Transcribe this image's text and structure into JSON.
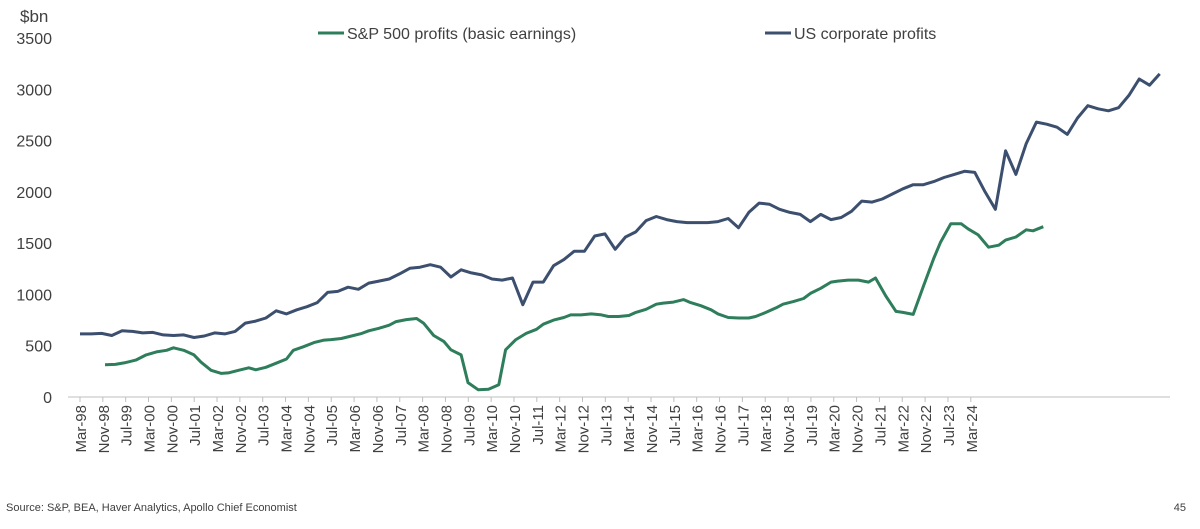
{
  "chart_data": {
    "type": "line",
    "y_unit_label": "$bn",
    "ylim": [
      0,
      3500
    ],
    "y_ticks": [
      0,
      500,
      1000,
      1500,
      2000,
      2500,
      3000,
      3500
    ],
    "x_tick_labels": [
      "Mar-98",
      "Nov-98",
      "Jul-99",
      "Mar-00",
      "Nov-00",
      "Jul-01",
      "Mar-02",
      "Nov-02",
      "Jul-03",
      "Mar-04",
      "Nov-04",
      "Jul-05",
      "Mar-06",
      "Nov-06",
      "Jul-07",
      "Mar-08",
      "Nov-08",
      "Jul-09",
      "Mar-10",
      "Nov-10",
      "Jul-11",
      "Mar-12",
      "Nov-12",
      "Jul-13",
      "Mar-14",
      "Nov-14",
      "Jul-15",
      "Mar-16",
      "Nov-16",
      "Jul-17",
      "Mar-18",
      "Nov-18",
      "Jul-19",
      "Mar-20",
      "Nov-20",
      "Jul-21",
      "Mar-22",
      "Nov-22",
      "Jul-23",
      "Mar-24"
    ],
    "x_start": 1998.17,
    "x_tick_step_years": 0.667,
    "grid": false,
    "legend_position": "top",
    "series": [
      {
        "name": "S&P 500 profits (basic earnings)",
        "color": "#2E7D5B",
        "points": [
          [
            1998.9,
            315
          ],
          [
            1999.2,
            318
          ],
          [
            1999.5,
            335
          ],
          [
            1999.8,
            360
          ],
          [
            2000.1,
            410
          ],
          [
            2000.4,
            440
          ],
          [
            2000.7,
            455
          ],
          [
            2000.9,
            480
          ],
          [
            2001.2,
            455
          ],
          [
            2001.5,
            410
          ],
          [
            2001.7,
            340
          ],
          [
            2002.0,
            260
          ],
          [
            2002.3,
            230
          ],
          [
            2002.5,
            235
          ],
          [
            2002.8,
            260
          ],
          [
            2003.1,
            285
          ],
          [
            2003.3,
            265
          ],
          [
            2003.6,
            290
          ],
          [
            2003.9,
            330
          ],
          [
            2004.2,
            370
          ],
          [
            2004.4,
            455
          ],
          [
            2004.7,
            490
          ],
          [
            2005.0,
            530
          ],
          [
            2005.3,
            555
          ],
          [
            2005.5,
            560
          ],
          [
            2005.8,
            570
          ],
          [
            2006.1,
            595
          ],
          [
            2006.4,
            620
          ],
          [
            2006.6,
            645
          ],
          [
            2006.9,
            670
          ],
          [
            2007.2,
            700
          ],
          [
            2007.4,
            735
          ],
          [
            2007.7,
            755
          ],
          [
            2008.0,
            765
          ],
          [
            2008.2,
            720
          ],
          [
            2008.5,
            600
          ],
          [
            2008.8,
            540
          ],
          [
            2009.0,
            460
          ],
          [
            2009.3,
            410
          ],
          [
            2009.5,
            140
          ],
          [
            2009.8,
            70
          ],
          [
            2010.1,
            75
          ],
          [
            2010.4,
            120
          ],
          [
            2010.6,
            460
          ],
          [
            2010.9,
            560
          ],
          [
            2011.2,
            620
          ],
          [
            2011.5,
            660
          ],
          [
            2011.7,
            710
          ],
          [
            2012.0,
            750
          ],
          [
            2012.3,
            775
          ],
          [
            2012.5,
            800
          ],
          [
            2012.8,
            800
          ],
          [
            2013.1,
            810
          ],
          [
            2013.4,
            800
          ],
          [
            2013.6,
            785
          ],
          [
            2013.9,
            785
          ],
          [
            2014.2,
            795
          ],
          [
            2014.4,
            825
          ],
          [
            2014.7,
            855
          ],
          [
            2015.0,
            905
          ],
          [
            2015.2,
            915
          ],
          [
            2015.5,
            925
          ],
          [
            2015.8,
            950
          ],
          [
            2016.0,
            920
          ],
          [
            2016.3,
            890
          ],
          [
            2016.6,
            850
          ],
          [
            2016.8,
            810
          ],
          [
            2017.1,
            775
          ],
          [
            2017.4,
            770
          ],
          [
            2017.7,
            770
          ],
          [
            2017.9,
            785
          ],
          [
            2018.2,
            825
          ],
          [
            2018.5,
            870
          ],
          [
            2018.7,
            905
          ],
          [
            2019.0,
            930
          ],
          [
            2019.3,
            960
          ],
          [
            2019.5,
            1010
          ],
          [
            2019.8,
            1060
          ],
          [
            2020.1,
            1120
          ],
          [
            2020.3,
            1130
          ],
          [
            2020.6,
            1140
          ],
          [
            2020.9,
            1140
          ],
          [
            2021.2,
            1120
          ],
          [
            2021.4,
            1160
          ],
          [
            2021.7,
            985
          ],
          [
            2022.0,
            835
          ],
          [
            2022.2,
            825
          ],
          [
            2022.5,
            805
          ],
          [
            2022.8,
            1080
          ],
          [
            2023.1,
            1350
          ],
          [
            2023.3,
            1510
          ],
          [
            2023.6,
            1690
          ],
          [
            2023.9,
            1690
          ],
          [
            2024.1,
            1640
          ],
          [
            2024.4,
            1580
          ],
          [
            2024.7,
            1460
          ],
          [
            2025.0,
            1480
          ],
          [
            2025.2,
            1530
          ],
          [
            2025.5,
            1560
          ],
          [
            2025.8,
            1630
          ],
          [
            2026.0,
            1620
          ],
          [
            2026.3,
            1660
          ]
        ]
      },
      {
        "name": "US corporate profits",
        "color": "#3C4F6E",
        "points": [
          [
            1998.17,
            615
          ],
          [
            1998.5,
            615
          ],
          [
            1998.8,
            620
          ],
          [
            1999.1,
            600
          ],
          [
            1999.4,
            645
          ],
          [
            1999.7,
            640
          ],
          [
            2000.0,
            625
          ],
          [
            2000.3,
            630
          ],
          [
            2000.6,
            605
          ],
          [
            2000.9,
            600
          ],
          [
            2001.2,
            605
          ],
          [
            2001.5,
            580
          ],
          [
            2001.8,
            595
          ],
          [
            2002.1,
            625
          ],
          [
            2002.4,
            615
          ],
          [
            2002.7,
            640
          ],
          [
            2003.0,
            720
          ],
          [
            2003.3,
            740
          ],
          [
            2003.6,
            770
          ],
          [
            2003.9,
            840
          ],
          [
            2004.2,
            810
          ],
          [
            2004.5,
            850
          ],
          [
            2004.8,
            880
          ],
          [
            2005.1,
            920
          ],
          [
            2005.4,
            1020
          ],
          [
            2005.7,
            1030
          ],
          [
            2006.0,
            1070
          ],
          [
            2006.3,
            1050
          ],
          [
            2006.6,
            1110
          ],
          [
            2006.9,
            1130
          ],
          [
            2007.2,
            1150
          ],
          [
            2007.5,
            1200
          ],
          [
            2007.8,
            1255
          ],
          [
            2008.1,
            1265
          ],
          [
            2008.4,
            1290
          ],
          [
            2008.7,
            1265
          ],
          [
            2009.0,
            1170
          ],
          [
            2009.3,
            1240
          ],
          [
            2009.6,
            1210
          ],
          [
            2009.9,
            1190
          ],
          [
            2010.2,
            1150
          ],
          [
            2010.5,
            1140
          ],
          [
            2010.8,
            1160
          ],
          [
            2011.1,
            900
          ],
          [
            2011.4,
            1120
          ],
          [
            2011.7,
            1120
          ],
          [
            2012.0,
            1280
          ],
          [
            2012.3,
            1340
          ],
          [
            2012.6,
            1420
          ],
          [
            2012.9,
            1420
          ],
          [
            2013.2,
            1570
          ],
          [
            2013.5,
            1590
          ],
          [
            2013.8,
            1440
          ],
          [
            2014.1,
            1560
          ],
          [
            2014.4,
            1610
          ],
          [
            2014.7,
            1720
          ],
          [
            2015.0,
            1760
          ],
          [
            2015.3,
            1730
          ],
          [
            2015.6,
            1710
          ],
          [
            2015.9,
            1700
          ],
          [
            2016.2,
            1700
          ],
          [
            2016.5,
            1700
          ],
          [
            2016.8,
            1710
          ],
          [
            2017.1,
            1740
          ],
          [
            2017.4,
            1650
          ],
          [
            2017.7,
            1800
          ],
          [
            2018.0,
            1890
          ],
          [
            2018.3,
            1880
          ],
          [
            2018.6,
            1830
          ],
          [
            2018.9,
            1800
          ],
          [
            2019.2,
            1780
          ],
          [
            2019.5,
            1710
          ],
          [
            2019.8,
            1780
          ],
          [
            2020.1,
            1730
          ],
          [
            2020.4,
            1750
          ],
          [
            2020.7,
            1810
          ],
          [
            2021.0,
            1910
          ],
          [
            2021.3,
            1900
          ],
          [
            2021.6,
            1930
          ],
          [
            2021.9,
            1980
          ],
          [
            2022.2,
            2030
          ],
          [
            2022.5,
            2070
          ],
          [
            2022.8,
            2070
          ],
          [
            2023.1,
            2100
          ],
          [
            2023.4,
            2140
          ],
          [
            2023.7,
            2170
          ],
          [
            2024.0,
            2200
          ],
          [
            2024.3,
            2190
          ],
          [
            2024.6,
            2000
          ],
          [
            2024.9,
            1830
          ],
          [
            2025.2,
            2400
          ],
          [
            2025.5,
            2170
          ],
          [
            2025.8,
            2470
          ],
          [
            2026.1,
            2680
          ],
          [
            2026.4,
            2660
          ],
          [
            2026.7,
            2630
          ],
          [
            2027.0,
            2560
          ],
          [
            2027.3,
            2720
          ],
          [
            2027.6,
            2840
          ],
          [
            2027.9,
            2810
          ],
          [
            2028.2,
            2790
          ],
          [
            2028.5,
            2820
          ],
          [
            2028.8,
            2940
          ],
          [
            2029.1,
            3100
          ],
          [
            2029.4,
            3040
          ],
          [
            2029.7,
            3150
          ]
        ]
      }
    ]
  },
  "footer": {
    "source": "Source: S&P, BEA, Haver Analytics, Apollo Chief Economist",
    "page_number": "45"
  }
}
